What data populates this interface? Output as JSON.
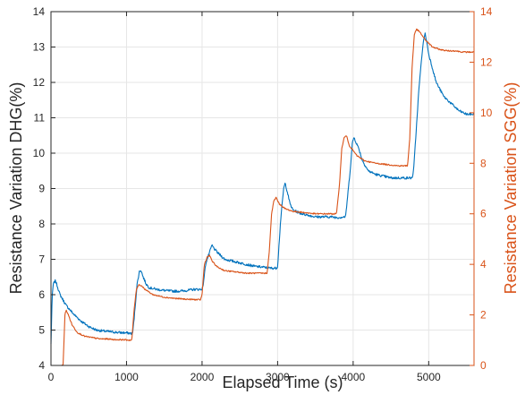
{
  "chart_data": {
    "type": "line",
    "title": "",
    "xlabel": "Elapsed Time (s)",
    "ylabel_left": "Resistance Variation DHG(%)",
    "ylabel_right": "Resistance Variation SGG(%)",
    "xlim": [
      0,
      5600
    ],
    "ylim_left": [
      4,
      14
    ],
    "ylim_right": [
      0,
      14
    ],
    "x_ticks": [
      0,
      1000,
      2000,
      3000,
      4000,
      5000
    ],
    "y_ticks_left": [
      4,
      5,
      6,
      7,
      8,
      9,
      10,
      11,
      12,
      13,
      14
    ],
    "y_ticks_right": [
      0,
      2,
      4,
      6,
      8,
      10,
      12,
      14
    ],
    "grid": true,
    "colors": {
      "left": "#0072BD",
      "right": "#D95319",
      "grid": "#e6e6e6",
      "axis": "#262626"
    },
    "series": [
      {
        "axis": "left",
        "color": "#0072BD",
        "x": [
          0,
          15,
          30,
          60,
          90,
          120,
          200,
          300,
          400,
          500,
          600,
          700,
          800,
          900,
          1000,
          1080,
          1100,
          1140,
          1170,
          1190,
          1220,
          1260,
          1300,
          1400,
          1500,
          1600,
          1700,
          1800,
          1900,
          1990,
          2010,
          2050,
          2100,
          2130,
          2160,
          2200,
          2250,
          2300,
          2400,
          2500,
          2600,
          2700,
          2800,
          2900,
          2980,
          3000,
          3040,
          3080,
          3100,
          3130,
          3160,
          3200,
          3300,
          3400,
          3500,
          3600,
          3700,
          3800,
          3880,
          3900,
          3960,
          3990,
          4010,
          4040,
          4080,
          4120,
          4200,
          4300,
          4400,
          4500,
          4600,
          4700,
          4780,
          4800,
          4870,
          4920,
          4950,
          4970,
          5000,
          5050,
          5100,
          5200,
          5300,
          5400,
          5500,
          5600
        ],
        "values": [
          4.6,
          5.9,
          6.3,
          6.4,
          6.2,
          6.0,
          5.7,
          5.45,
          5.25,
          5.1,
          5.0,
          4.97,
          4.95,
          4.93,
          4.92,
          4.9,
          5.3,
          6.3,
          6.65,
          6.7,
          6.5,
          6.3,
          6.2,
          6.15,
          6.12,
          6.1,
          6.1,
          6.12,
          6.15,
          6.15,
          6.2,
          6.9,
          7.2,
          7.4,
          7.3,
          7.2,
          7.1,
          7.0,
          6.95,
          6.9,
          6.85,
          6.8,
          6.78,
          6.75,
          6.75,
          6.8,
          8.1,
          9.0,
          9.15,
          8.9,
          8.6,
          8.4,
          8.3,
          8.25,
          8.2,
          8.2,
          8.2,
          8.18,
          8.2,
          8.2,
          9.5,
          10.3,
          10.45,
          10.3,
          10.1,
          9.8,
          9.5,
          9.4,
          9.35,
          9.3,
          9.3,
          9.3,
          9.3,
          9.5,
          11.8,
          13.0,
          13.4,
          13.2,
          12.8,
          12.4,
          12.0,
          11.6,
          11.4,
          11.2,
          11.1,
          11.1
        ]
      },
      {
        "axis": "right",
        "color": "#D95319",
        "x": [
          130,
          160,
          175,
          185,
          200,
          230,
          280,
          350,
          450,
          550,
          650,
          750,
          850,
          950,
          1050,
          1070,
          1100,
          1130,
          1160,
          1200,
          1250,
          1350,
          1500,
          1650,
          1800,
          1950,
          1980,
          2000,
          2030,
          2070,
          2100,
          2140,
          2200,
          2300,
          2450,
          2600,
          2750,
          2860,
          2890,
          2920,
          2950,
          2980,
          3020,
          3100,
          3200,
          3350,
          3500,
          3650,
          3780,
          3820,
          3850,
          3880,
          3910,
          3950,
          4050,
          4150,
          4300,
          4450,
          4600,
          4720,
          4750,
          4780,
          4810,
          4840,
          4880,
          4950,
          5050,
          5150,
          5250,
          5350,
          5450,
          5550,
          5600
        ],
        "values": [
          0,
          0,
          1.2,
          2.0,
          2.2,
          2.0,
          1.6,
          1.3,
          1.15,
          1.1,
          1.05,
          1.05,
          1.02,
          1.02,
          1.0,
          1.0,
          2.2,
          3.0,
          3.2,
          3.15,
          3.0,
          2.8,
          2.7,
          2.65,
          2.62,
          2.6,
          2.6,
          2.8,
          4.0,
          4.3,
          4.35,
          4.1,
          3.9,
          3.75,
          3.7,
          3.65,
          3.65,
          3.65,
          4.5,
          6.0,
          6.5,
          6.65,
          6.4,
          6.2,
          6.1,
          6.05,
          6.0,
          6.0,
          6.0,
          7.2,
          8.6,
          9.0,
          9.1,
          8.7,
          8.3,
          8.1,
          8.0,
          7.95,
          7.9,
          7.9,
          9.0,
          11.8,
          13.1,
          13.3,
          13.2,
          12.9,
          12.6,
          12.5,
          12.45,
          12.45,
          12.4,
          12.4,
          12.4
        ]
      }
    ]
  }
}
